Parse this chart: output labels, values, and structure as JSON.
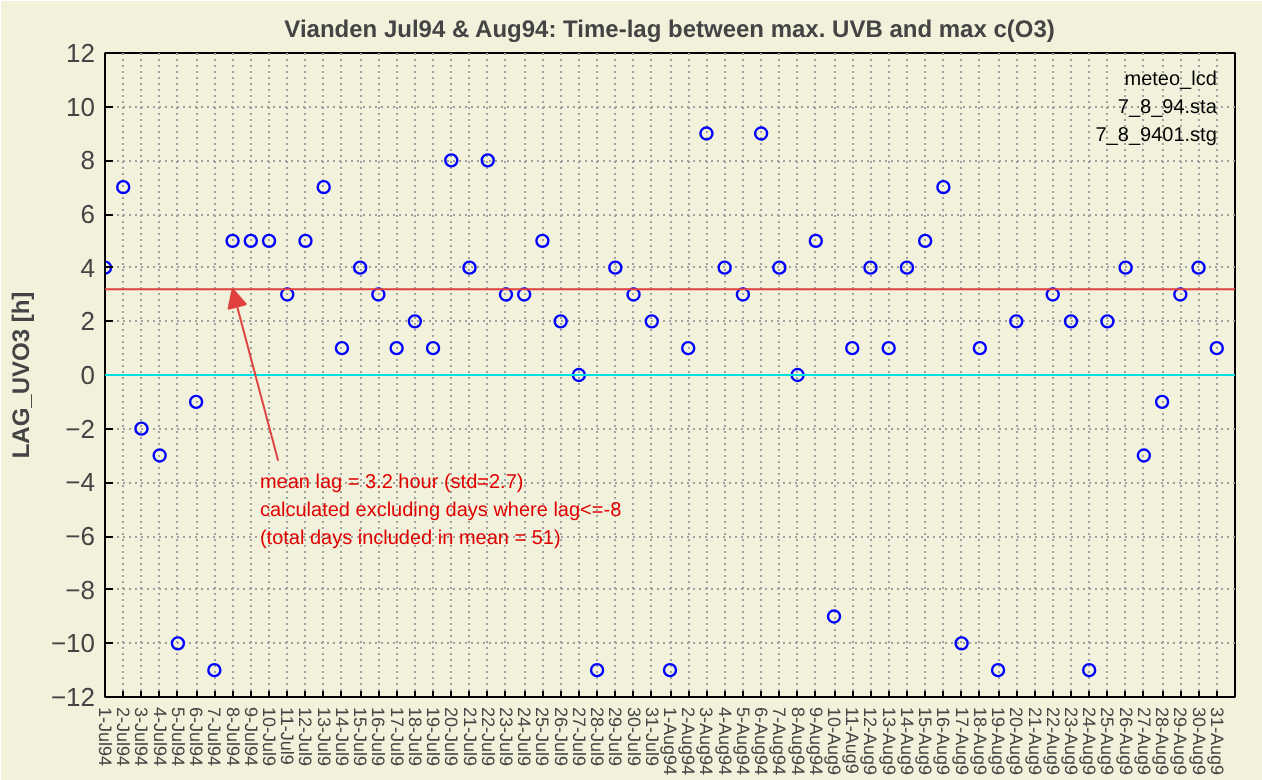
{
  "chart_data": {
    "type": "scatter",
    "title": "Vianden Jul94 & Aug94: Time-lag between max. UVB and max c(O3)",
    "ylabel": "LAG_UVO3 [h]",
    "categories": [
      "1-Jul94",
      "2-Jul94",
      "3-Jul94",
      "4-Jul94",
      "5-Jul94",
      "6-Jul94",
      "7-Jul94",
      "8-Jul94",
      "9-Jul94",
      "10-Jul9",
      "11-Jul9",
      "12-Jul9",
      "13-Jul9",
      "14-Jul9",
      "15-Jul9",
      "16-Jul9",
      "17-Jul9",
      "18-Jul9",
      "19-Jul9",
      "20-Jul9",
      "21-Jul9",
      "22-Jul9",
      "23-Jul9",
      "24-Jul9",
      "25-Jul9",
      "26-Jul9",
      "27-Jul9",
      "28-Jul9",
      "29-Jul9",
      "30-Jul9",
      "31-Jul9",
      "1-Aug94",
      "2-Aug94",
      "3-Aug94",
      "4-Aug94",
      "5-Aug94",
      "6-Aug94",
      "7-Aug94",
      "8-Aug94",
      "9-Aug94",
      "10-Aug9",
      "11-Aug9",
      "12-Aug9",
      "13-Aug9",
      "14-Aug9",
      "15-Aug9",
      "16-Aug9",
      "17-Aug9",
      "18-Aug9",
      "19-Aug9",
      "20-Aug9",
      "21-Aug9",
      "22-Aug9",
      "23-Aug9",
      "24-Aug9",
      "25-Aug9",
      "26-Aug9",
      "27-Aug9",
      "28-Aug9",
      "29-Aug9",
      "30-Aug9",
      "31-Aug9"
    ],
    "series": [
      {
        "color": "#0000ff",
        "values": [
          4,
          7,
          -2,
          -3,
          -10,
          -1,
          -11,
          5,
          5,
          5,
          3,
          5,
          7,
          1,
          4,
          3,
          1,
          2,
          1,
          8,
          4,
          8,
          3,
          3,
          5,
          2,
          0,
          -11,
          4,
          3,
          2,
          -11,
          1,
          9,
          4,
          3,
          9,
          4,
          0,
          5,
          -9,
          1,
          4,
          1,
          4,
          5,
          7,
          -10,
          1,
          -11,
          2,
          null,
          3,
          2,
          -11,
          2,
          4,
          -3,
          -1,
          3,
          4,
          1
        ]
      }
    ],
    "ylim": [
      -12,
      12
    ],
    "yticks": [
      -12,
      -10,
      -8,
      -6,
      -4,
      -2,
      0,
      2,
      4,
      6,
      8,
      10,
      12
    ],
    "grid": true,
    "marker": "circle",
    "ref_lines": [
      {
        "axis": "y",
        "value": 0,
        "color": "#00e0e0"
      },
      {
        "axis": "y",
        "value": 3.2,
        "color": "#e04040"
      }
    ],
    "annotations": [
      {
        "text": "mean lag = 3.2 hour (std=2.7)\ncalculated excluding days where lag<=-8\n(total days included in mean = 51)",
        "x": "8-Jul94",
        "y": 3.2
      },
      "meteo_lcd\n7_8_94.sta\n7_8_9401.stg"
    ]
  }
}
